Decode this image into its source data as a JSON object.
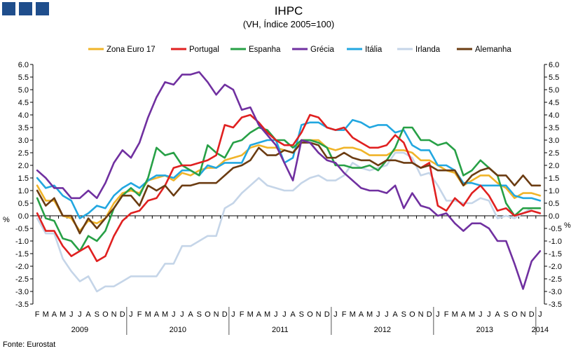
{
  "logo_squares": 3,
  "chart_data": {
    "type": "line",
    "title": "IHPC",
    "subtitle": "(VH, Índice 2005=100)",
    "ylabel_left": "%",
    "ylabel_right": "%",
    "source": "Fonte: Eurostat",
    "ylim": [
      -3.5,
      6.0
    ],
    "ytick_step": 0.5,
    "grid": false,
    "legend_position": "top",
    "month_labels": [
      "F",
      "M",
      "A",
      "M",
      "J",
      "J",
      "A",
      "S",
      "O",
      "N",
      "D",
      "J",
      "F",
      "M",
      "A",
      "M",
      "J",
      "J",
      "A",
      "S",
      "O",
      "N",
      "D",
      "J",
      "F",
      "M",
      "A",
      "M",
      "J",
      "J",
      "A",
      "S",
      "O",
      "N",
      "D",
      "J",
      "F",
      "M",
      "A",
      "M",
      "J",
      "J",
      "A",
      "S",
      "O",
      "N",
      "D",
      "J",
      "F",
      "M",
      "A",
      "M",
      "J",
      "J",
      "A",
      "S",
      "O",
      "N",
      "D",
      "J"
    ],
    "year_labels": [
      {
        "label": "2009",
        "start": 0,
        "end": 10
      },
      {
        "label": "2010",
        "start": 11,
        "end": 22
      },
      {
        "label": "2011",
        "start": 23,
        "end": 34
      },
      {
        "label": "2012",
        "start": 35,
        "end": 46
      },
      {
        "label": "2013",
        "start": 47,
        "end": 58
      },
      {
        "label": "2014",
        "start": 59,
        "end": 59
      }
    ],
    "series": [
      {
        "name": "Zona Euro 17",
        "color": "#f0b429",
        "values": [
          1.2,
          0.6,
          0.6,
          0.0,
          -0.1,
          -0.6,
          -0.2,
          -0.3,
          -0.1,
          0.5,
          0.9,
          1.0,
          0.9,
          1.4,
          1.5,
          1.6,
          1.4,
          1.7,
          1.6,
          1.8,
          1.9,
          1.9,
          2.2,
          2.3,
          2.4,
          2.7,
          2.8,
          2.7,
          2.7,
          2.6,
          2.5,
          3.0,
          3.0,
          3.0,
          2.7,
          2.6,
          2.7,
          2.7,
          2.6,
          2.4,
          2.4,
          2.4,
          2.6,
          2.6,
          2.5,
          2.2,
          2.2,
          2.0,
          1.8,
          1.7,
          1.2,
          1.4,
          1.6,
          1.6,
          1.3,
          1.1,
          0.7,
          0.9,
          0.9,
          0.8
        ]
      },
      {
        "name": "Portugal",
        "color": "#e02020",
        "values": [
          0.1,
          -0.6,
          -0.6,
          -1.2,
          -1.6,
          -1.4,
          -1.2,
          -1.8,
          -1.6,
          -0.8,
          -0.2,
          0.1,
          0.2,
          0.6,
          0.7,
          1.2,
          1.9,
          2.0,
          2.0,
          2.1,
          2.2,
          2.4,
          3.6,
          3.5,
          3.9,
          4.0,
          3.7,
          3.3,
          3.0,
          2.8,
          2.8,
          3.3,
          4.0,
          3.9,
          3.5,
          3.4,
          3.5,
          3.1,
          2.9,
          2.7,
          2.7,
          2.8,
          3.2,
          2.9,
          2.1,
          1.9,
          2.1,
          0.4,
          0.2,
          0.7,
          0.4,
          0.9,
          1.2,
          0.8,
          0.2,
          0.3,
          0.0,
          0.1,
          0.2,
          0.1
        ]
      },
      {
        "name": "Espanha",
        "color": "#27a046",
        "values": [
          0.7,
          -0.1,
          -0.2,
          -0.9,
          -1.0,
          -1.4,
          -0.8,
          -1.0,
          -0.6,
          0.3,
          0.8,
          1.1,
          0.8,
          1.5,
          2.7,
          2.4,
          2.5,
          2.0,
          1.8,
          1.6,
          2.8,
          2.5,
          2.3,
          2.9,
          3.0,
          3.3,
          3.5,
          3.4,
          3.0,
          3.0,
          2.7,
          3.0,
          3.0,
          2.9,
          2.7,
          2.0,
          2.0,
          1.9,
          1.9,
          2.0,
          1.8,
          2.2,
          2.7,
          3.5,
          3.5,
          3.0,
          3.0,
          2.8,
          2.9,
          2.6,
          1.6,
          1.8,
          2.2,
          1.9,
          1.6,
          0.5,
          0.0,
          0.3,
          0.3,
          0.3
        ]
      },
      {
        "name": "Grécia",
        "color": "#7030a0",
        "values": [
          1.8,
          1.5,
          1.1,
          1.1,
          0.7,
          0.7,
          1.0,
          0.7,
          1.3,
          2.1,
          2.6,
          2.3,
          2.9,
          3.9,
          4.7,
          5.3,
          5.2,
          5.6,
          5.6,
          5.7,
          5.3,
          4.8,
          5.2,
          5.0,
          4.2,
          4.3,
          3.6,
          3.2,
          2.8,
          2.1,
          1.4,
          3.0,
          2.9,
          2.5,
          2.2,
          2.1,
          1.7,
          1.4,
          1.1,
          1.0,
          1.0,
          0.9,
          1.2,
          0.3,
          0.9,
          0.4,
          0.3,
          0.0,
          0.1,
          -0.3,
          -0.6,
          -0.3,
          -0.3,
          -0.5,
          -1.0,
          -1.0,
          -1.9,
          -2.9,
          -1.8,
          -1.4
        ]
      },
      {
        "name": "Itália",
        "color": "#22a7e0",
        "values": [
          1.5,
          1.1,
          1.2,
          0.8,
          0.6,
          -0.1,
          0.1,
          0.4,
          0.3,
          0.8,
          1.1,
          1.3,
          1.1,
          1.4,
          1.6,
          1.6,
          1.5,
          1.8,
          1.8,
          1.6,
          2.0,
          1.9,
          2.1,
          2.1,
          2.1,
          2.8,
          2.9,
          3.0,
          3.0,
          2.1,
          2.3,
          3.6,
          3.7,
          3.7,
          3.5,
          3.4,
          3.4,
          3.8,
          3.7,
          3.5,
          3.6,
          3.6,
          3.3,
          3.4,
          2.8,
          2.6,
          2.6,
          2.0,
          2.0,
          1.8,
          1.3,
          1.3,
          1.2,
          1.2,
          1.2,
          1.2,
          0.8,
          0.7,
          0.7,
          0.6
        ]
      },
      {
        "name": "Irlanda",
        "color": "#c5d5e8",
        "values": [
          -0.1,
          -0.7,
          -0.7,
          -1.7,
          -2.2,
          -2.6,
          -2.4,
          -3.0,
          -2.8,
          -2.8,
          -2.6,
          -2.4,
          -2.4,
          -2.4,
          -2.4,
          -1.9,
          -1.9,
          -1.2,
          -1.2,
          -1.0,
          -0.8,
          -0.8,
          0.3,
          0.5,
          0.9,
          1.2,
          1.5,
          1.2,
          1.1,
          1.0,
          1.0,
          1.3,
          1.5,
          1.6,
          1.4,
          1.4,
          1.6,
          2.1,
          1.9,
          1.8,
          1.9,
          2.0,
          2.5,
          2.5,
          2.3,
          1.6,
          1.7,
          1.2,
          0.6,
          0.6,
          0.5,
          0.5,
          0.7,
          0.6,
          -0.1,
          0.0,
          -0.1,
          0.1,
          0.3,
          0.3
        ]
      },
      {
        "name": "Alemanha",
        "color": "#6b3c12",
        "values": [
          1.0,
          0.4,
          0.7,
          0.0,
          0.0,
          -0.7,
          -0.1,
          -0.5,
          -0.1,
          0.3,
          0.8,
          0.8,
          0.4,
          1.2,
          1.0,
          1.2,
          0.8,
          1.2,
          1.2,
          1.3,
          1.3,
          1.3,
          1.6,
          1.9,
          2.0,
          2.2,
          2.7,
          2.4,
          2.4,
          2.6,
          2.5,
          2.9,
          2.9,
          2.8,
          2.3,
          2.3,
          2.5,
          2.3,
          2.2,
          2.2,
          2.0,
          2.2,
          2.2,
          2.1,
          2.1,
          1.9,
          2.0,
          1.8,
          1.8,
          1.8,
          1.2,
          1.6,
          1.8,
          1.9,
          1.6,
          1.6,
          1.2,
          1.6,
          1.2,
          1.2
        ]
      }
    ]
  }
}
